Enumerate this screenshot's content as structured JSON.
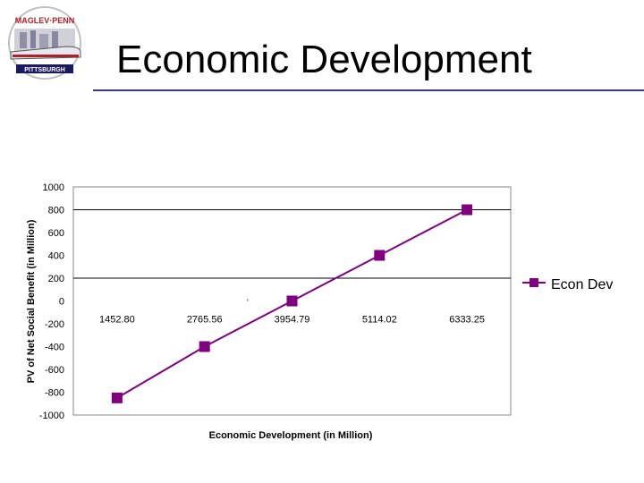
{
  "page": {
    "title": "Economic Development"
  },
  "logo": {
    "text_top": "MAGLEV · PENNSYLVANIA",
    "text_bottom": "PITTSBURGH"
  },
  "chart_data": {
    "type": "line",
    "x": [
      1452.8,
      2765.56,
      3954.79,
      5114.02,
      6333.25
    ],
    "x_tick_labels": [
      "1452.80",
      "2765.56",
      "3954.79",
      "5114.02",
      "6333.25"
    ],
    "series": [
      {
        "name": "Econ Dev",
        "values": [
          -850,
          -400,
          0,
          400,
          800
        ]
      }
    ],
    "xlabel": "Economic Development (in Million)",
    "ylabel": "PV of Net Social Benefit (in Million)",
    "ylim": [
      -1000,
      1000
    ],
    "y_ticks": [
      1000,
      800,
      600,
      400,
      200,
      0,
      -200,
      -400,
      -600,
      -800,
      -1000
    ],
    "y_tick_labels": [
      "1000",
      "800",
      "600",
      "400",
      "200",
      "0",
      "-200",
      "-400",
      "-600",
      "-800",
      "-1000"
    ],
    "grid_lines_at": [
      800,
      200
    ],
    "legend_position": "right",
    "series_color": "#800080",
    "marker": "square"
  }
}
